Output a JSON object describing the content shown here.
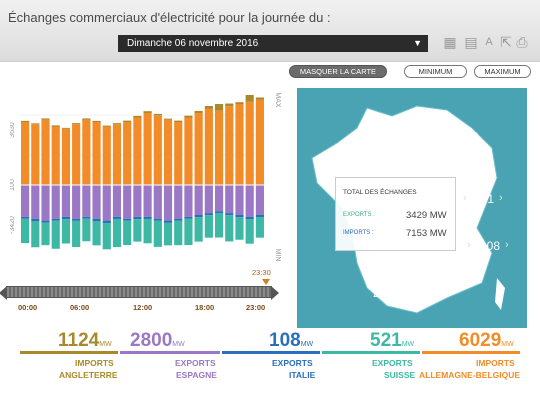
{
  "header": {
    "title": "Échanges commerciaux d'électricité pour la journée du :",
    "date_value": "Dimanche 06 novembre 2016",
    "tools": [
      "grid-icon",
      "calendar-icon",
      "text-icon",
      "export-icon",
      "print-icon"
    ]
  },
  "view_buttons": {
    "map_toggle": "MASQUER LA CARTE",
    "minimum": "MINIMUM",
    "maximum": "MAXIMUM"
  },
  "timeline": {
    "cursor_time": "23:30",
    "ticks": [
      "00:00",
      "06:00",
      "12:00",
      "18:00",
      "23:00"
    ]
  },
  "chart_data": {
    "type": "bar",
    "x_unit": "hour",
    "y_ticks": [
      "3630",
      "100",
      "-3420"
    ],
    "y_max_label": "MAX",
    "y_min_label": "MIN",
    "ylim": [
      -4000,
      4000
    ],
    "series": [
      {
        "name": "IMPORTS ALLEMAGNE-BELGIQUE",
        "color": "#f28c28",
        "values": [
          2800,
          2700,
          2900,
          2600,
          2500,
          2700,
          2900,
          2800,
          2600,
          2700,
          2800,
          3000,
          3200,
          3100,
          2900,
          2800,
          3000,
          3200,
          3400,
          3300,
          3500,
          3600,
          3700,
          3800
        ]
      },
      {
        "name": "IMPORTS ANGLETERRE",
        "color": "#a98a2a",
        "values": [
          50,
          40,
          60,
          50,
          40,
          50,
          60,
          50,
          40,
          50,
          60,
          70,
          80,
          60,
          50,
          60,
          80,
          90,
          110,
          300,
          120,
          80,
          300,
          90
        ]
      },
      {
        "name": "EXPORTS ESPAGNE",
        "color": "#9b78c5",
        "values": [
          -1700,
          -1800,
          -1900,
          -1800,
          -1700,
          -1800,
          -1700,
          -1800,
          -1900,
          -1700,
          -1800,
          -1700,
          -1700,
          -1800,
          -1900,
          -1800,
          -1700,
          -1600,
          -1500,
          -1400,
          -1500,
          -1600,
          -1700,
          -1600
        ]
      },
      {
        "name": "EXPORTS ITALIE",
        "color": "#2a6fba",
        "values": [
          -100,
          -120,
          -110,
          -100,
          -120,
          -110,
          -100,
          -120,
          -130,
          -110,
          -100,
          -120,
          -110,
          -100,
          -120,
          -110,
          -100,
          -120,
          -110,
          -100,
          -110,
          -120,
          -130,
          -110
        ]
      },
      {
        "name": "EXPORTS SUISSE",
        "color": "#3db8a4",
        "values": [
          -1300,
          -1400,
          -1200,
          -1500,
          -1300,
          -1400,
          -1200,
          -1300,
          -1400,
          -1500,
          -1300,
          -1200,
          -1300,
          -1400,
          -1200,
          -1300,
          -1400,
          -1300,
          -1200,
          -1300,
          -1400,
          -1200,
          -1300,
          -1100
        ]
      }
    ]
  },
  "map": {
    "summary_title": "TOTAL DES ÉCHANGES",
    "exports_label": "EXPORTS :",
    "exports_value": "3429 MW",
    "imports_label": "IMPORTS :",
    "imports_value": "7153 MW",
    "labels": {
      "angleterre": "1124",
      "allemagne": "6029",
      "suisse": "521",
      "italie": "108",
      "espagne": "2800"
    }
  },
  "summaries": [
    {
      "value": "1124",
      "unit": "MW",
      "type": "IMPORTS",
      "country": "ANGLETERRE",
      "color": "#a98a2a"
    },
    {
      "value": "2800",
      "unit": "MW",
      "type": "EXPORTS",
      "country": "ESPAGNE",
      "color": "#9b78c5"
    },
    {
      "value": "108",
      "unit": "MW",
      "type": "EXPORTS",
      "country": "ITALIE",
      "color": "#2a6fba"
    },
    {
      "value": "521",
      "unit": "MW",
      "type": "EXPORTS",
      "country": "SUISSE",
      "color": "#3db8a4"
    },
    {
      "value": "6029",
      "unit": "MW",
      "type": "IMPORTS",
      "country": "ALLEMAGNE-BELGIQUE",
      "color": "#f28c28"
    }
  ]
}
